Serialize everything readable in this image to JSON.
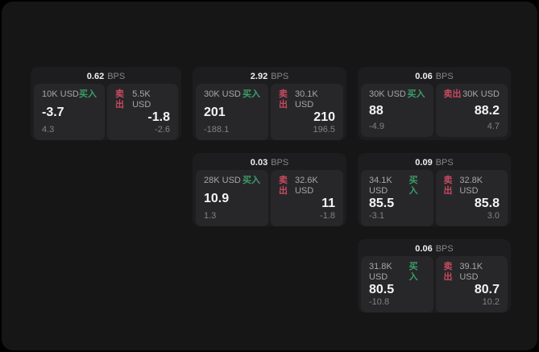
{
  "labels": {
    "bps_unit": "BPS",
    "buy": "买入",
    "sell": "卖出"
  },
  "colors": {
    "page_bg": "#161617",
    "card_bg": "#1d1d1f",
    "panel_bg": "#27272a",
    "buy_green": "#3b9e68",
    "sell_red": "#c84a5e"
  },
  "cards": [
    {
      "bps": "0.62",
      "buy": {
        "size": "10K USD",
        "value": "-3.7",
        "sub": "4.3"
      },
      "sell": {
        "size": "5.5K USD",
        "value": "-1.8",
        "sub": "-2.6"
      }
    },
    {
      "bps": "2.92",
      "buy": {
        "size": "30K USD",
        "value": "201",
        "sub": "-188.1"
      },
      "sell": {
        "size": "30.1K USD",
        "value": "210",
        "sub": "196.5"
      }
    },
    {
      "bps": "0.06",
      "buy": {
        "size": "30K USD",
        "value": "88",
        "sub": "-4.9"
      },
      "sell": {
        "size": "30K USD",
        "value": "88.2",
        "sub": "4.7"
      }
    },
    {
      "bps": "0.03",
      "buy": {
        "size": "28K USD",
        "value": "10.9",
        "sub": "1.3"
      },
      "sell": {
        "size": "32.6K USD",
        "value": "11",
        "sub": "-1.8"
      }
    },
    {
      "bps": "0.09",
      "buy": {
        "size": "34.1K USD",
        "value": "85.5",
        "sub": "-3.1"
      },
      "sell": {
        "size": "32.8K USD",
        "value": "85.8",
        "sub": "3.0"
      }
    },
    {
      "bps": "0.06",
      "buy": {
        "size": "31.8K USD",
        "value": "80.5",
        "sub": "-10.8"
      },
      "sell": {
        "size": "39.1K USD",
        "value": "80.7",
        "sub": "10.2"
      }
    }
  ]
}
